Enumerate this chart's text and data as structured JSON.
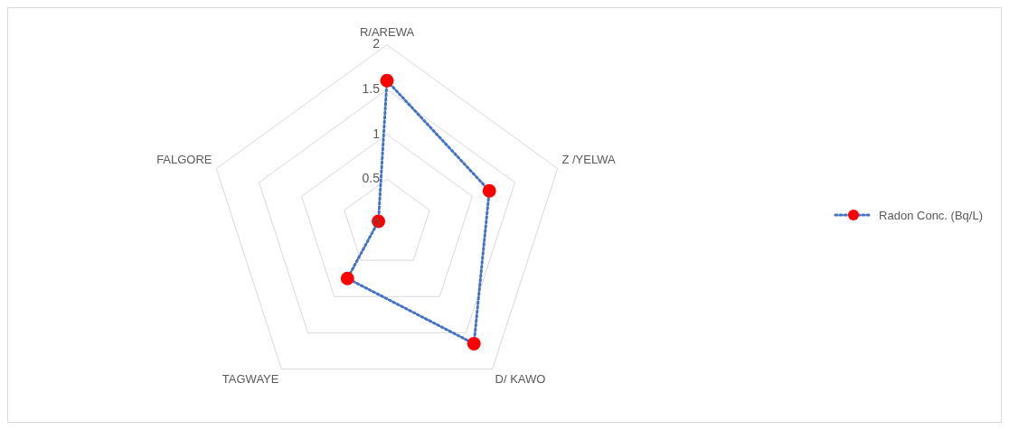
{
  "chart_data": {
    "type": "radar",
    "categories": [
      "R/AREWA",
      "Z /YELWA",
      "D/ KAWO",
      "TAGWAYE",
      "FALGORE"
    ],
    "series": [
      {
        "name": "Radon Conc. (Bq/L)",
        "color": "#4472c4",
        "colors": [
          "#ff0000",
          "#ff0000",
          "#ff0000",
          "#ff0000",
          "#ff0000"
        ],
        "values": [
          1.6,
          1.2,
          1.65,
          0.75,
          0.1
        ]
      }
    ],
    "ylim": [
      0,
      2
    ],
    "yticks": [
      0,
      0.5,
      1,
      1.5,
      2
    ],
    "grid": true,
    "legend": "right",
    "marker": "circle",
    "line_style": "dotted"
  }
}
